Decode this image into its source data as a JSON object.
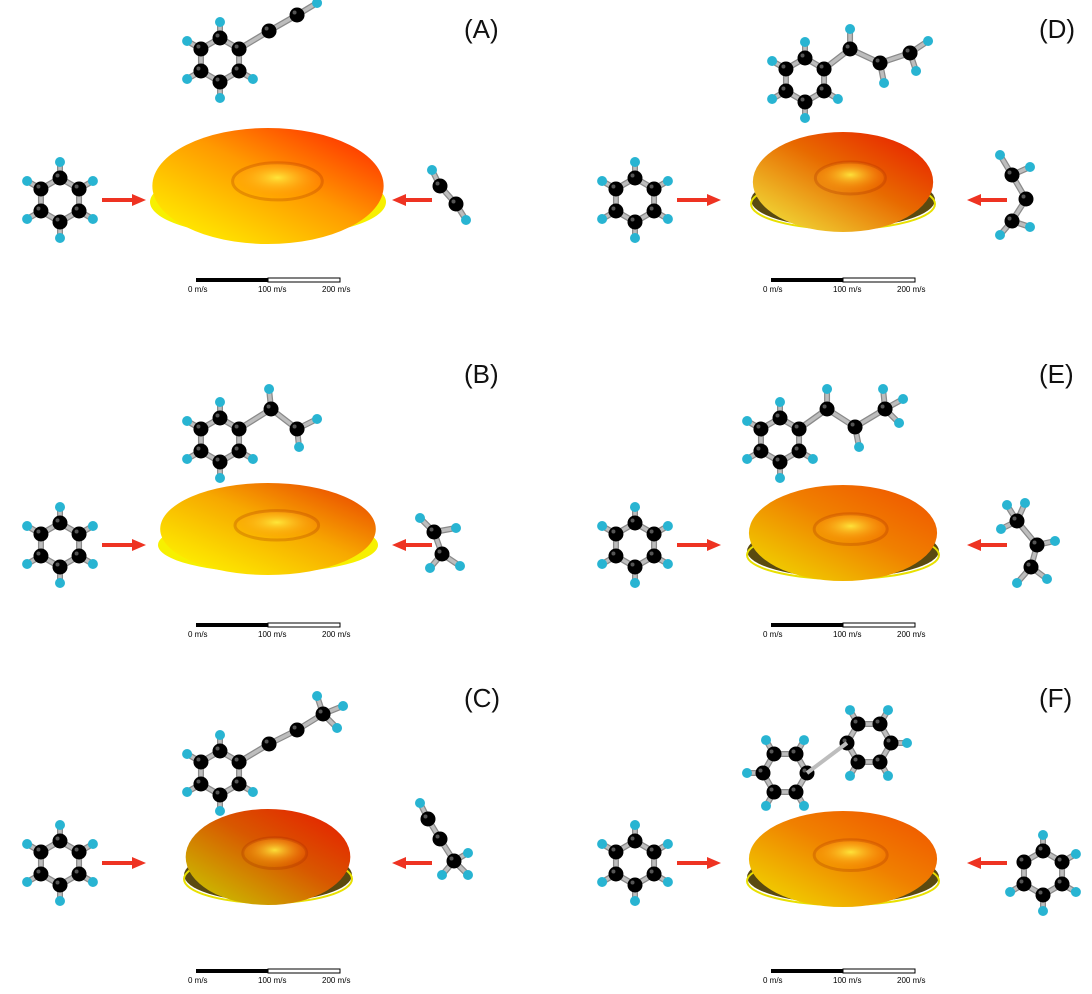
{
  "panels": [
    {
      "id": "A",
      "label": "(A)",
      "product": "phenylacetylene",
      "radical": "ethynyl",
      "shape": "tilt",
      "colors": [
        "#ffff00",
        "#ff9900",
        "#ff1a00"
      ],
      "dark": false
    },
    {
      "id": "B",
      "label": "(B)",
      "product": "styrene",
      "radical": "vinyl",
      "shape": "wavy",
      "colors": [
        "#ffff00",
        "#f7a800",
        "#e83800"
      ],
      "dark": false
    },
    {
      "id": "C",
      "label": "(C)",
      "product": "phenylpropyne",
      "radical": "propynyl",
      "shape": "ring",
      "colors": [
        "#c8d000",
        "#d85800",
        "#e81800"
      ],
      "dark": true
    },
    {
      "id": "D",
      "label": "(D)",
      "product": "1-phenyl-1,3-butadiene",
      "radical": "butadienyl",
      "shape": "ring",
      "colors": [
        "#f2ee40",
        "#e86a00",
        "#e81500"
      ],
      "dark": true
    },
    {
      "id": "E",
      "label": "(E)",
      "product": "1-phenylpropene",
      "radical": "propenyl",
      "shape": "flat",
      "colors": [
        "#f0e000",
        "#f08000",
        "#f05000"
      ],
      "dark": true
    },
    {
      "id": "F",
      "label": "(F)",
      "product": "biphenyl",
      "radical": "phenyl",
      "shape": "flat",
      "colors": [
        "#f0e000",
        "#f08000",
        "#f05000"
      ],
      "dark": true
    }
  ],
  "scale_bar": {
    "ticks": [
      "0 m/s",
      "100 m/s",
      "200 m/s"
    ]
  },
  "colors": {
    "carbon": "#000000",
    "hydrogen": "#28b4d2",
    "bond": "#bdbdbd",
    "arrow": "#ee3322"
  }
}
